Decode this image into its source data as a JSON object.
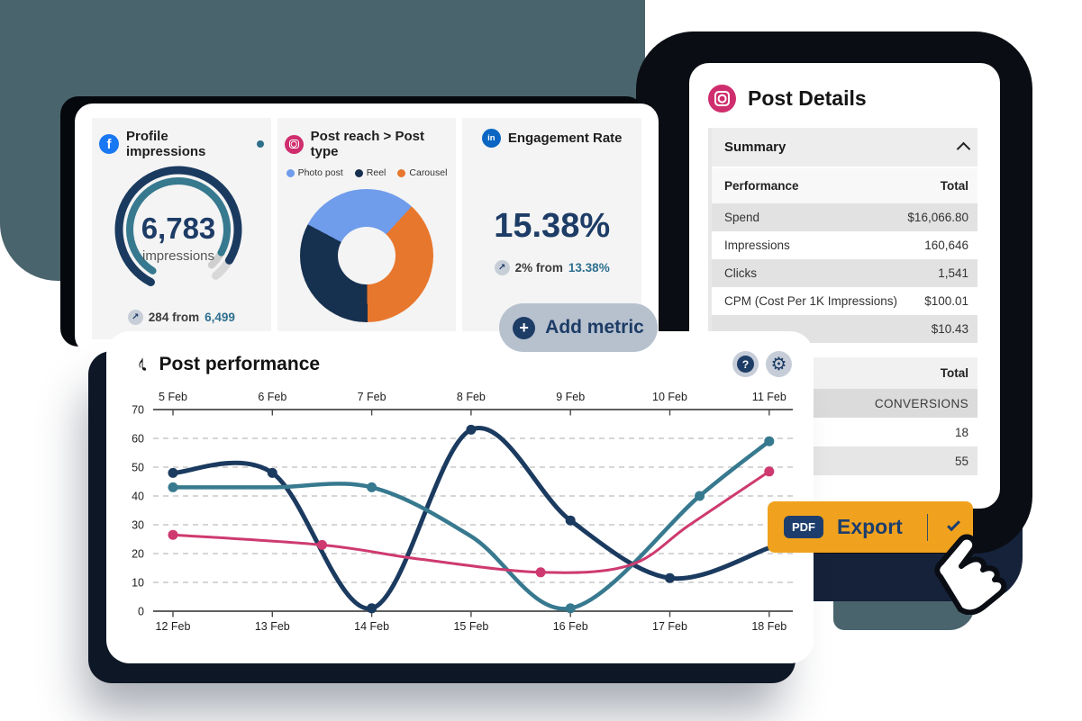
{
  "colors": {
    "navy_text": "#1d3c66",
    "line_navy": "#1b3a5f",
    "line_teal": "#37798f",
    "line_pink": "#ce3a6f",
    "slate_backdrop": "#4a646d",
    "black_backdrop": "#0a0d13",
    "navy_backdrop": "#15223a",
    "export_orange": "#f0a21e",
    "facebook_blue": "#1877f2",
    "linkedin_blue": "#0a66c2",
    "instagram_pink": "#cf2e6e"
  },
  "top_card": {
    "profile": {
      "title": "Profile impressions",
      "value": "6,783",
      "unit": "impressions",
      "delta": "284 from",
      "delta_ref": "6,499"
    },
    "reach": {
      "title": "Post reach > Post type",
      "legend": [
        {
          "label": "Photo post",
          "color": "#6f9ceb"
        },
        {
          "label": "Reel",
          "color": "#16304f"
        },
        {
          "label": "Carousel",
          "color": "#e8772e"
        }
      ]
    },
    "engagement": {
      "title": "Engagement Rate",
      "value": "15.38%",
      "delta": "2% from",
      "delta_ref": "13.38%"
    }
  },
  "add_metric": {
    "label": "Add metric",
    "plus": "+"
  },
  "post_details": {
    "title": "Post Details",
    "summary_label": "Summary",
    "performance_table": {
      "col_label": "Performance",
      "col_value": "Total",
      "rows": [
        {
          "label": "Spend",
          "value": "$16,066.80"
        },
        {
          "label": "Impressions",
          "value": "160,646"
        },
        {
          "label": "Clicks",
          "value": "1,541"
        },
        {
          "label": "CPM (Cost Per 1K Impressions)",
          "value": "$100.01"
        },
        {
          "label": "",
          "value": "$10.43"
        }
      ]
    },
    "totals_table": {
      "header": "Total",
      "rows": [
        {
          "value": "CONVERSIONS"
        },
        {
          "value": "18"
        },
        {
          "value": "55"
        }
      ]
    }
  },
  "post_performance": {
    "title": "Post performance",
    "help_glyph": "?",
    "gear_glyph": "⚙",
    "note_glyph": "♪"
  },
  "export": {
    "badge": "PDF",
    "label": "Export"
  },
  "chart_data": [
    {
      "type": "line",
      "title": "Post performance",
      "x_axis_top": [
        "5 Feb",
        "6 Feb",
        "7 Feb",
        "8 Feb",
        "9 Feb",
        "10 Feb",
        "11 Feb"
      ],
      "x_axis_bottom": [
        "12 Feb",
        "13 Feb",
        "14 Feb",
        "15 Feb",
        "16 Feb",
        "17 Feb",
        "18 Feb"
      ],
      "ylim": [
        0,
        70
      ],
      "yticks": [
        0,
        10,
        20,
        30,
        40,
        50,
        60,
        70
      ],
      "grid": "horizontal-dashed",
      "legend_position": "none",
      "series": [
        {
          "name": "series-navy",
          "color": "#1b3a5f",
          "width": 5,
          "points": [
            {
              "x": 12,
              "y": 48,
              "dot": true
            },
            {
              "x": 13,
              "y": 48,
              "dot": true
            },
            {
              "x": 14,
              "y": 1,
              "dot": true
            },
            {
              "x": 15,
              "y": 63,
              "dot": true
            },
            {
              "x": 16,
              "y": 31.5,
              "dot": true
            },
            {
              "x": 17,
              "y": 11.5,
              "dot": true
            },
            {
              "x": 18,
              "y": 22,
              "dot": false
            }
          ]
        },
        {
          "name": "series-teal",
          "color": "#37798f",
          "width": 4.5,
          "points": [
            {
              "x": 12,
              "y": 43,
              "dot": true
            },
            {
              "x": 13,
              "y": 43,
              "dot": false
            },
            {
              "x": 14,
              "y": 43,
              "dot": true
            },
            {
              "x": 15,
              "y": 26,
              "dot": false
            },
            {
              "x": 16,
              "y": 1,
              "dot": true
            },
            {
              "x": 17.3,
              "y": 40,
              "dot": true
            },
            {
              "x": 18,
              "y": 59,
              "dot": true
            }
          ]
        },
        {
          "name": "series-pink",
          "color": "#ce3a6f",
          "width": 3,
          "points": [
            {
              "x": 12,
              "y": 26.5,
              "dot": true
            },
            {
              "x": 13.5,
              "y": 23,
              "dot": true
            },
            {
              "x": 14.5,
              "y": 18,
              "dot": false
            },
            {
              "x": 15.7,
              "y": 13.5,
              "dot": true
            },
            {
              "x": 16.6,
              "y": 16,
              "dot": false
            },
            {
              "x": 17.2,
              "y": 30,
              "dot": false
            },
            {
              "x": 18,
              "y": 48.5,
              "dot": true
            }
          ]
        }
      ]
    },
    {
      "type": "pie",
      "donut": true,
      "title": "Post reach > Post type",
      "start_angle_deg": 298,
      "slices": [
        {
          "label": "Photo post",
          "value": 29,
          "color": "#6f9ceb"
        },
        {
          "label": "Carousel",
          "value": 38,
          "color": "#e8772e"
        },
        {
          "label": "Reel",
          "value": 33,
          "color": "#16304f"
        }
      ]
    },
    {
      "type": "gauge",
      "title": "Profile impressions",
      "value": 6783,
      "unit": "impressions",
      "previous": 6499,
      "delta": 284
    }
  ]
}
